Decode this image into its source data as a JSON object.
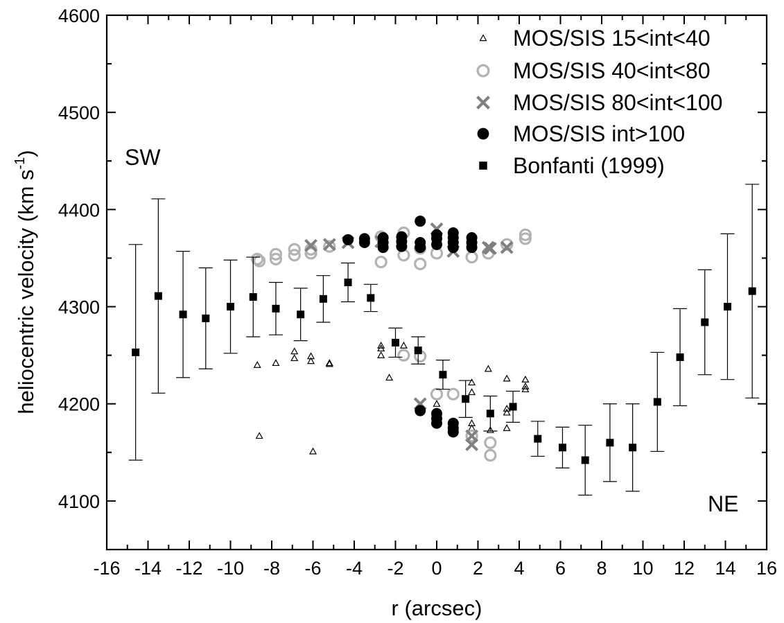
{
  "chart_data": {
    "type": "scatter",
    "title": "",
    "xlabel": "r (arcsec)",
    "ylabel": "heliocentric velocity (km s",
    "ylabel_sup": "-1",
    "ylabel_close": ")",
    "xlim": [
      -16,
      16
    ],
    "ylim": [
      4050,
      4600
    ],
    "x_ticks": [
      -16,
      -14,
      -12,
      -10,
      -8,
      -6,
      -4,
      -2,
      0,
      2,
      4,
      6,
      8,
      10,
      12,
      14,
      16
    ],
    "y_ticks": [
      4100,
      4200,
      4300,
      4400,
      4500,
      4600
    ],
    "grid": false,
    "legend_position": "top-right",
    "annotations": [
      {
        "text": "SW",
        "x": -13.8,
        "y": 4450
      },
      {
        "text": "NE",
        "x": 13.4,
        "y": 4100
      }
    ],
    "series": [
      {
        "name": "MOS/SIS 15<int<40",
        "marker": "triangle-open",
        "color": "#000000",
        "points": [
          [
            -8.7,
            4240
          ],
          [
            -8.6,
            4167
          ],
          [
            -7.8,
            4242
          ],
          [
            -6.9,
            4254
          ],
          [
            -6.9,
            4247
          ],
          [
            -6.1,
            4249
          ],
          [
            -6.1,
            4244
          ],
          [
            -6.0,
            4151
          ],
          [
            -5.2,
            4242
          ],
          [
            -5.2,
            4241
          ],
          [
            -2.7,
            4260
          ],
          [
            -2.7,
            4257
          ],
          [
            -2.7,
            4250
          ],
          [
            -2.3,
            4227
          ],
          [
            -1.6,
            4260
          ],
          [
            -0.8,
            4195
          ],
          [
            0.0,
            4200
          ],
          [
            0.8,
            4180
          ],
          [
            1.7,
            4222
          ],
          [
            1.7,
            4212
          ],
          [
            1.7,
            4180
          ],
          [
            1.7,
            4175
          ],
          [
            2.5,
            4236
          ],
          [
            2.6,
            4173
          ],
          [
            3.4,
            4226
          ],
          [
            3.4,
            4195
          ],
          [
            3.4,
            4191
          ],
          [
            3.4,
            4175
          ],
          [
            4.3,
            4225
          ],
          [
            4.3,
            4218
          ],
          [
            4.3,
            4215
          ]
        ]
      },
      {
        "name": "MOS/SIS 40<int<80",
        "marker": "circle-open",
        "color": "#b3b3b3",
        "points": [
          [
            -8.7,
            4349
          ],
          [
            -8.6,
            4347
          ],
          [
            -7.8,
            4354
          ],
          [
            -7.8,
            4349
          ],
          [
            -6.9,
            4359
          ],
          [
            -6.9,
            4353
          ],
          [
            -6.1,
            4359
          ],
          [
            -6.1,
            4355
          ],
          [
            -5.2,
            4362
          ],
          [
            -2.7,
            4372
          ],
          [
            -2.7,
            4346
          ],
          [
            -1.6,
            4376
          ],
          [
            -1.6,
            4353
          ],
          [
            -0.8,
            4360
          ],
          [
            -0.8,
            4344
          ],
          [
            -1.6,
            4250
          ],
          [
            -0.8,
            4249
          ],
          [
            0.0,
            4355
          ],
          [
            0.0,
            4210
          ],
          [
            0.8,
            4210
          ],
          [
            1.7,
            4351
          ],
          [
            1.7,
            4167
          ],
          [
            2.5,
            4355
          ],
          [
            2.6,
            4160
          ],
          [
            2.6,
            4147
          ],
          [
            3.4,
            4364
          ],
          [
            4.3,
            4374
          ],
          [
            4.3,
            4370
          ]
        ]
      },
      {
        "name": "MOS/SIS 80<int<100",
        "marker": "x",
        "color": "#808080",
        "points": [
          [
            -6.1,
            4363
          ],
          [
            -5.2,
            4364
          ],
          [
            -4.3,
            4366
          ],
          [
            -2.7,
            4367
          ],
          [
            0.0,
            4380
          ],
          [
            0.8,
            4357
          ],
          [
            2.5,
            4361
          ],
          [
            2.6,
            4360
          ],
          [
            3.4,
            4361
          ],
          [
            -0.8,
            4200
          ],
          [
            1.7,
            4167
          ],
          [
            1.7,
            4158
          ]
        ]
      },
      {
        "name": "MOS/SIS int>100",
        "marker": "circle-filled",
        "color": "#000000",
        "points": [
          [
            -4.3,
            4369
          ],
          [
            -3.5,
            4370
          ],
          [
            -3.5,
            4366
          ],
          [
            -2.6,
            4371
          ],
          [
            -2.6,
            4366
          ],
          [
            -2.6,
            4361
          ],
          [
            -1.7,
            4372
          ],
          [
            -1.7,
            4367
          ],
          [
            -1.7,
            4362
          ],
          [
            -0.8,
            4388
          ],
          [
            -0.8,
            4366
          ],
          [
            -0.8,
            4361
          ],
          [
            0.0,
            4374
          ],
          [
            0.0,
            4370
          ],
          [
            0.0,
            4364
          ],
          [
            0.8,
            4376
          ],
          [
            0.8,
            4371
          ],
          [
            0.8,
            4366
          ],
          [
            0.8,
            4361
          ],
          [
            1.7,
            4371
          ],
          [
            1.7,
            4366
          ],
          [
            1.7,
            4361
          ],
          [
            -0.8,
            4193
          ],
          [
            0.0,
            4190
          ],
          [
            0.0,
            4185
          ],
          [
            0.0,
            4180
          ],
          [
            0.8,
            4180
          ],
          [
            0.8,
            4175
          ],
          [
            0.8,
            4171
          ]
        ]
      },
      {
        "name": "Bonfanti (1999)",
        "marker": "square-filled",
        "color": "#000000",
        "error_bars": true,
        "points": [
          {
            "x": -14.6,
            "y": 4253,
            "err": 111
          },
          {
            "x": -13.5,
            "y": 4311,
            "err": 100
          },
          {
            "x": -12.3,
            "y": 4292,
            "err": 65
          },
          {
            "x": -11.2,
            "y": 4288,
            "err": 52
          },
          {
            "x": -10.0,
            "y": 4300,
            "err": 48
          },
          {
            "x": -8.9,
            "y": 4310,
            "err": 41
          },
          {
            "x": -7.8,
            "y": 4298,
            "err": 27
          },
          {
            "x": -6.6,
            "y": 4292,
            "err": 27
          },
          {
            "x": -5.5,
            "y": 4308,
            "err": 24
          },
          {
            "x": -4.3,
            "y": 4325,
            "err": 20
          },
          {
            "x": -3.2,
            "y": 4309,
            "err": 14
          },
          {
            "x": -2.0,
            "y": 4263,
            "err": 15
          },
          {
            "x": -0.9,
            "y": 4255,
            "err": 14
          },
          {
            "x": 0.3,
            "y": 4230,
            "err": 15
          },
          {
            "x": 1.4,
            "y": 4205,
            "err": 19
          },
          {
            "x": 2.6,
            "y": 4190,
            "err": 18
          },
          {
            "x": 3.7,
            "y": 4197,
            "err": 16
          },
          {
            "x": 4.9,
            "y": 4164,
            "err": 18
          },
          {
            "x": 6.1,
            "y": 4155,
            "err": 21
          },
          {
            "x": 7.2,
            "y": 4142,
            "err": 36
          },
          {
            "x": 8.4,
            "y": 4160,
            "err": 40
          },
          {
            "x": 9.5,
            "y": 4155,
            "err": 45
          },
          {
            "x": 10.7,
            "y": 4202,
            "err": 51
          },
          {
            "x": 11.8,
            "y": 4248,
            "err": 50
          },
          {
            "x": 13.0,
            "y": 4284,
            "err": 54
          },
          {
            "x": 14.1,
            "y": 4300,
            "err": 75
          },
          {
            "x": 15.3,
            "y": 4316,
            "err": 110
          }
        ]
      }
    ]
  }
}
